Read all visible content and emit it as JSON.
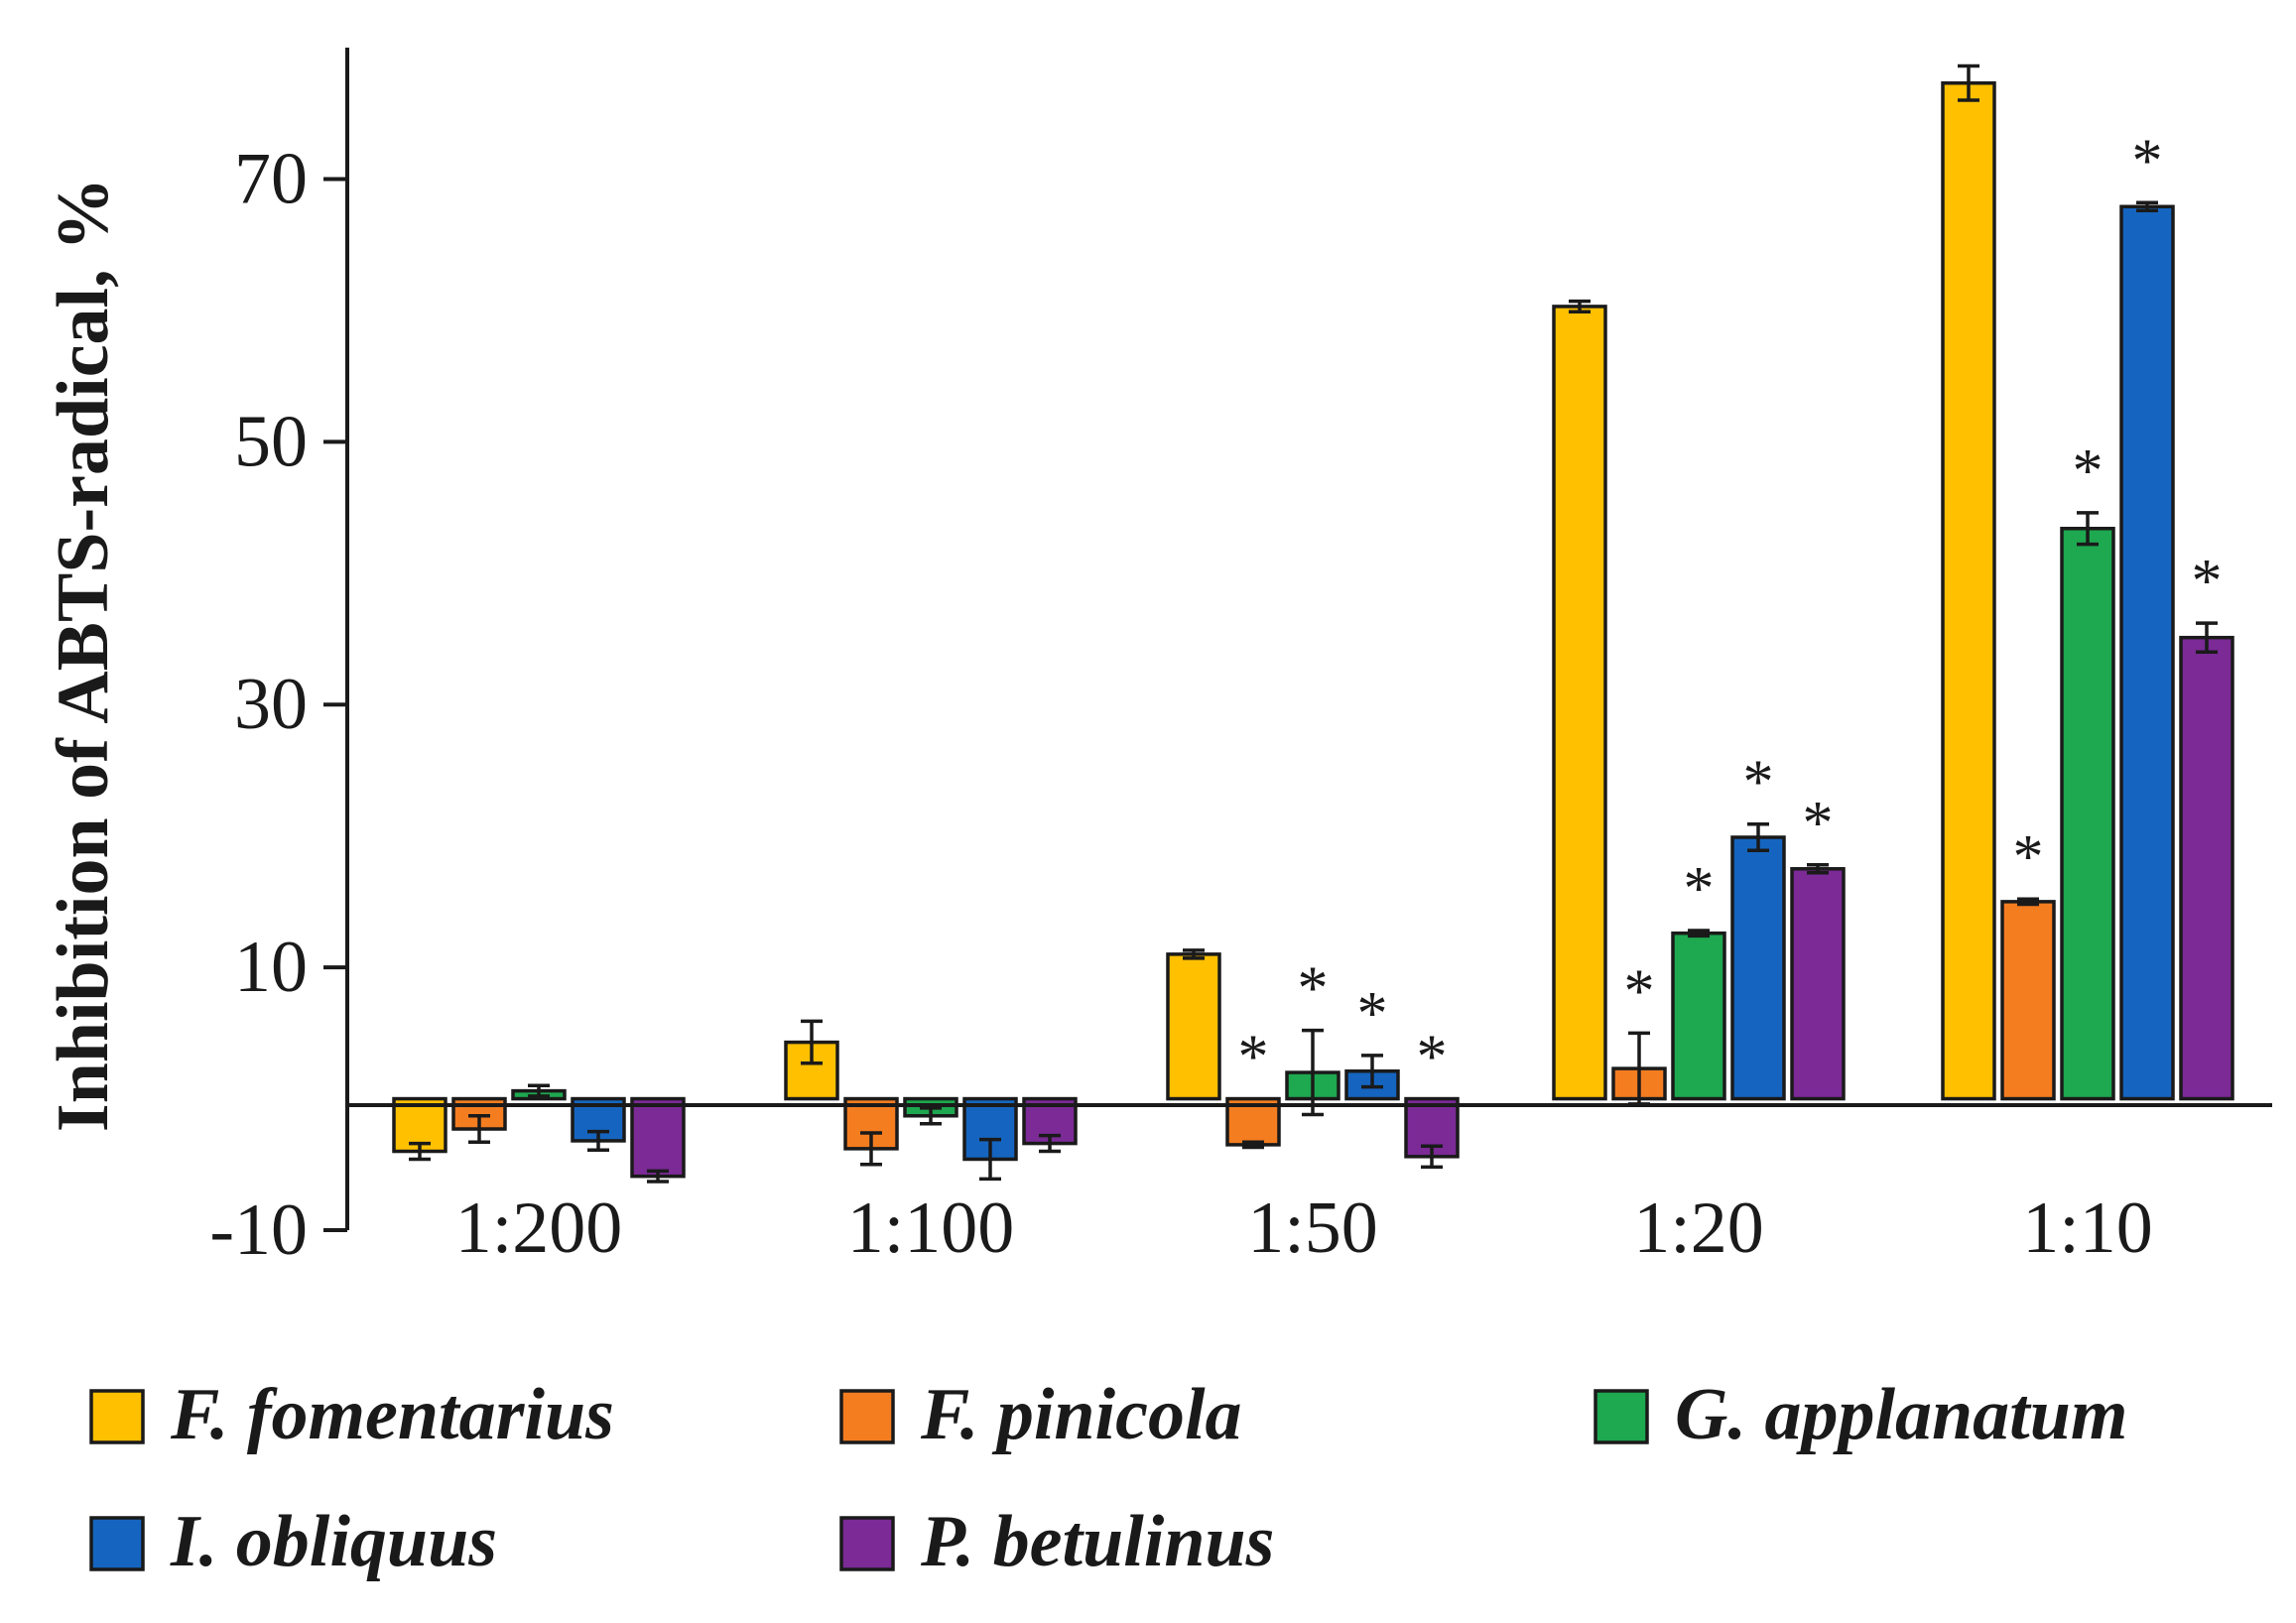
{
  "chart_data": {
    "type": "bar",
    "title": "",
    "xlabel": "",
    "ylabel": "Inhibition of ABTS-radical, %",
    "ylim": [
      -10,
      80
    ],
    "yticks": [
      "-10",
      "10",
      "30",
      "50",
      "70"
    ],
    "ytick_values": [
      -10,
      10,
      30,
      50,
      70
    ],
    "grid": false,
    "legend_position": "bottom",
    "categories": [
      "1:200",
      "1:100",
      "1:50",
      "1:20",
      "1:10"
    ],
    "series": [
      {
        "name": "F. fomentarius",
        "color": "#ffc000",
        "values": [
          -4.0,
          4.3,
          11.0,
          60.3,
          77.3
        ],
        "errors": [
          0.6,
          1.6,
          0.3,
          0.4,
          1.3
        ],
        "significant": [
          false,
          false,
          false,
          false,
          false
        ]
      },
      {
        "name": "F. pinicola",
        "color": "#f47d20",
        "values": [
          -2.3,
          -3.8,
          -3.5,
          2.3,
          15.0
        ],
        "errors": [
          1.0,
          1.2,
          0.2,
          2.7,
          0.2
        ],
        "significant": [
          false,
          false,
          true,
          true,
          true
        ]
      },
      {
        "name": "G. applanatum",
        "color": "#1ea84f",
        "values": [
          0.6,
          -1.3,
          2.0,
          12.6,
          43.4
        ],
        "errors": [
          0.4,
          0.6,
          3.2,
          0.2,
          1.2
        ],
        "significant": [
          false,
          false,
          true,
          true,
          true
        ]
      },
      {
        "name": "I. obliquus",
        "color": "#1565c0",
        "values": [
          -3.2,
          -4.6,
          2.1,
          19.9,
          67.9
        ],
        "errors": [
          0.7,
          1.5,
          1.2,
          1.0,
          0.3
        ],
        "significant": [
          false,
          false,
          true,
          true,
          true
        ]
      },
      {
        "name": "P. betulinus",
        "color": "#7b2a96",
        "values": [
          -5.9,
          -3.4,
          -4.4,
          17.5,
          35.1
        ],
        "errors": [
          0.4,
          0.6,
          0.8,
          0.3,
          1.1
        ],
        "significant": [
          false,
          false,
          true,
          true,
          true
        ]
      }
    ],
    "significance_marker": "*"
  }
}
